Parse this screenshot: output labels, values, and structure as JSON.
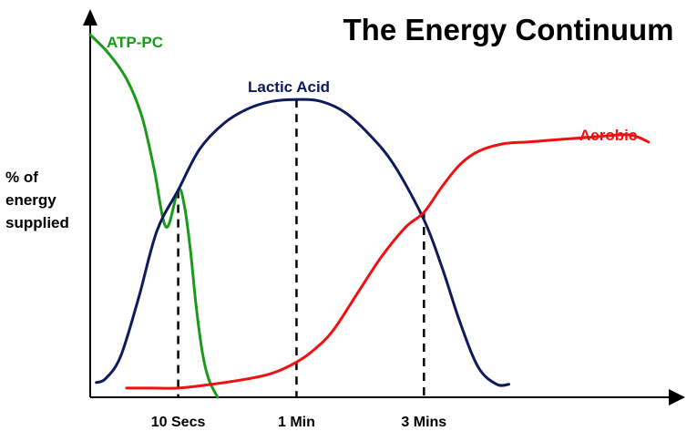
{
  "chart_data": {
    "type": "line",
    "title": "The Energy Continuum",
    "ylabel_lines": [
      "% of",
      "energy",
      "supplied"
    ],
    "xlabel": "",
    "xlim": [
      0,
      100
    ],
    "ylim": [
      0,
      100
    ],
    "ticks": [
      {
        "label": "10 Secs",
        "x": 14.5
      },
      {
        "label": "1 Min",
        "x": 34
      },
      {
        "label": "3 Mins",
        "x": 55
      }
    ],
    "series": [
      {
        "name": "ATP-PC",
        "color": "#1a9a1a",
        "points": [
          [
            0,
            98
          ],
          [
            3,
            93
          ],
          [
            6,
            86
          ],
          [
            8.5,
            76
          ],
          [
            10.5,
            62
          ],
          [
            12.5,
            46
          ],
          [
            14.5,
            56
          ],
          [
            15.5,
            52
          ],
          [
            16.5,
            40
          ],
          [
            17.5,
            24
          ],
          [
            18.5,
            12
          ],
          [
            19.5,
            5
          ],
          [
            21,
            0
          ]
        ]
      },
      {
        "name": "Lactic Acid",
        "color": "#0d1a5c",
        "points": [
          [
            1,
            4
          ],
          [
            2.5,
            5
          ],
          [
            5,
            11
          ],
          [
            8,
            27
          ],
          [
            11,
            45
          ],
          [
            14.5,
            56
          ],
          [
            18,
            67
          ],
          [
            22,
            74
          ],
          [
            26,
            78
          ],
          [
            30,
            80
          ],
          [
            34,
            80.5
          ],
          [
            38,
            80
          ],
          [
            42,
            77
          ],
          [
            46,
            71
          ],
          [
            50,
            63
          ],
          [
            55,
            48
          ],
          [
            58,
            35
          ],
          [
            61,
            20
          ],
          [
            64,
            8
          ],
          [
            67,
            3.5
          ],
          [
            69,
            3.5
          ]
        ]
      },
      {
        "name": "Aerobic",
        "color": "#ee1111",
        "points": [
          [
            6,
            2.5
          ],
          [
            10,
            2.5
          ],
          [
            14.5,
            2.5
          ],
          [
            20,
            3.5
          ],
          [
            26,
            5
          ],
          [
            30,
            6.5
          ],
          [
            34,
            9.5
          ],
          [
            37,
            13
          ],
          [
            40,
            18
          ],
          [
            44,
            28
          ],
          [
            48,
            38
          ],
          [
            52,
            46
          ],
          [
            55,
            50
          ],
          [
            58,
            57
          ],
          [
            61,
            63
          ],
          [
            64,
            66.5
          ],
          [
            68,
            68.5
          ],
          [
            72,
            69
          ],
          [
            76,
            69.5
          ],
          [
            80,
            70
          ],
          [
            84,
            70.5
          ],
          [
            88,
            71
          ],
          [
            90,
            70.5
          ],
          [
            92,
            69
          ]
        ]
      }
    ],
    "series_labels": [
      {
        "name": "ATP-PC",
        "color": "#1a9a1a"
      },
      {
        "name": "Lactic Acid",
        "color": "#0d1a5c"
      },
      {
        "name": "Aerobic",
        "color": "#ee1111"
      }
    ],
    "grid": false,
    "legend": "inline"
  }
}
